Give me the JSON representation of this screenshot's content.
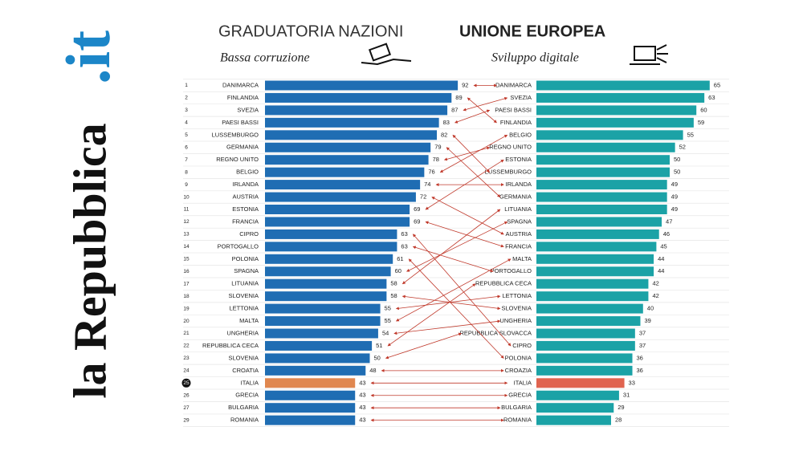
{
  "logo": {
    "name": "la Repubblica",
    "suffix": ".it"
  },
  "title": {
    "regular": "GRADUATORIA NAZIONI",
    "bold": "UNIONE EUROPEA"
  },
  "chart_data": [
    {
      "type": "bar",
      "subtitle": "Bassa corruzione",
      "ranks": [
        "1",
        "2",
        "3",
        "4",
        "5",
        "6",
        "7",
        "8",
        "9",
        "10",
        "11",
        "12",
        "13",
        "14",
        "15",
        "16",
        "17",
        "18",
        "19",
        "20",
        "21",
        "22",
        "23",
        "24",
        "25",
        "26",
        "27",
        "29"
      ],
      "categories": [
        "DANIMARCA",
        "FINLANDIA",
        "SVEZIA",
        "PAESI BASSI",
        "LUSSEMBURGO",
        "GERMANIA",
        "REGNO UNITO",
        "BELGIO",
        "IRLANDA",
        "AUSTRIA",
        "ESTONIA",
        "FRANCIA",
        "CIPRO",
        "PORTOGALLO",
        "POLONIA",
        "SPAGNA",
        "LITUANIA",
        "SLOVENIA",
        "LETTONIA",
        "MALTA",
        "UNGHERIA",
        "REPUBBLICA CECA",
        "SLOVENIA",
        "CROATIA",
        "ITALIA",
        "GRECIA",
        "BULGARIA",
        "ROMANIA"
      ],
      "values": [
        92,
        89,
        87,
        83,
        82,
        79,
        78,
        76,
        74,
        72,
        69,
        69,
        63,
        63,
        61,
        60,
        58,
        58,
        55,
        55,
        54,
        51,
        50,
        48,
        43,
        43,
        43,
        43
      ],
      "colors": [
        "#1f6db3",
        "#1f6db3",
        "#1f6db3",
        "#1f6db3",
        "#1f6db3",
        "#1f6db3",
        "#1f6db3",
        "#1f6db3",
        "#1f6db3",
        "#1f6db3",
        "#1f6db3",
        "#1f6db3",
        "#1f6db3",
        "#1f6db3",
        "#1f6db3",
        "#1f6db3",
        "#1f6db3",
        "#1f6db3",
        "#1f6db3",
        "#1f6db3",
        "#1f6db3",
        "#1f6db3",
        "#1f6db3",
        "#1f6db3",
        "#e0874f",
        "#1f6db3",
        "#1f6db3",
        "#1f6db3"
      ]
    },
    {
      "type": "bar",
      "subtitle": "Sviluppo digitale",
      "categories": [
        "DANIMARCA",
        "SVEZIA",
        "PAESI BASSI",
        "FINLANDIA",
        "BELGIO",
        "REGNO UNITO",
        "ESTONIA",
        "LUSSEMBURGO",
        "IRLANDA",
        "GERMANIA",
        "LITUANIA",
        "SPAGNA",
        "AUSTRIA",
        "FRANCIA",
        "MALTA",
        "PORTOGALLO",
        "REPUBBLICA CECA",
        "LETTONIA",
        "SLOVENIA",
        "UNGHERIA",
        "REPUBBLICA SLOVACCA",
        "CIPRO",
        "POLONIA",
        "CROAZIA",
        "ITALIA",
        "GRECIA",
        "BULGARIA",
        "ROMANIA"
      ],
      "values": [
        65,
        63,
        60,
        59,
        55,
        52,
        50,
        50,
        49,
        49,
        49,
        47,
        46,
        45,
        44,
        44,
        42,
        42,
        40,
        39,
        37,
        37,
        36,
        36,
        33,
        31,
        29,
        28
      ],
      "colors": [
        "#1ba2a6",
        "#1ba2a6",
        "#1ba2a6",
        "#1ba2a6",
        "#1ba2a6",
        "#1ba2a6",
        "#1ba2a6",
        "#1ba2a6",
        "#1ba2a6",
        "#1ba2a6",
        "#1ba2a6",
        "#1ba2a6",
        "#1ba2a6",
        "#1ba2a6",
        "#1ba2a6",
        "#1ba2a6",
        "#1ba2a6",
        "#1ba2a6",
        "#1ba2a6",
        "#1ba2a6",
        "#1ba2a6",
        "#1ba2a6",
        "#1ba2a6",
        "#1ba2a6",
        "#e0634f",
        "#1ba2a6",
        "#1ba2a6",
        "#1ba2a6"
      ]
    }
  ]
}
